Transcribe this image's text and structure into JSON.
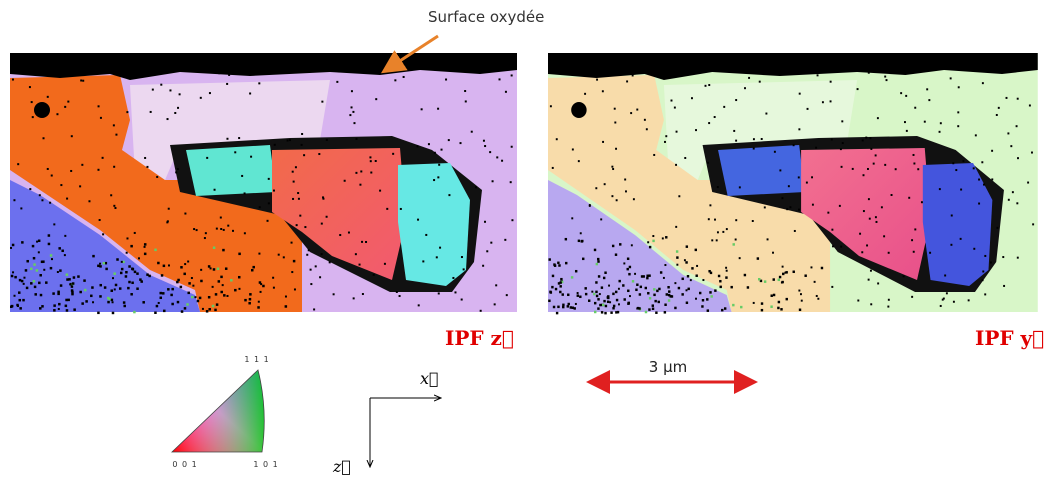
{
  "annotation": "Surface oxydée",
  "maps": [
    {
      "label": "IPF z⃗"
    },
    {
      "label": "IPF y⃗"
    }
  ],
  "scale_bar": "3 µm",
  "legend": {
    "corners": [
      "1 1 1",
      "0 0 1",
      "1 0 1"
    ]
  },
  "axes": {
    "x": "x⃗",
    "z": "z⃗"
  }
}
